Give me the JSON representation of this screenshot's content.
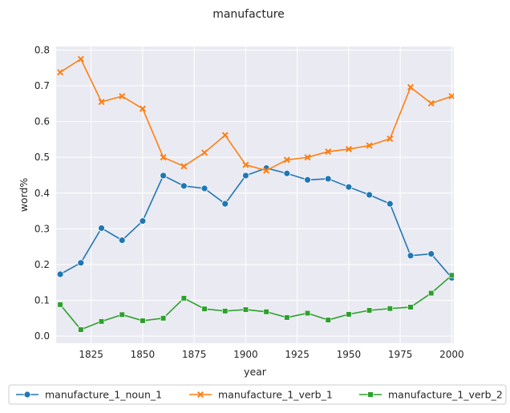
{
  "chart_data": {
    "type": "line",
    "title": "manufacture",
    "xlabel": "year",
    "ylabel": "word%",
    "xlim": [
      1808,
      2001
    ],
    "ylim": [
      -0.02,
      0.81
    ],
    "xticks": [
      1825,
      1850,
      1875,
      1900,
      1925,
      1950,
      1975,
      2000
    ],
    "yticks": [
      0.0,
      0.1,
      0.2,
      0.3,
      0.4,
      0.5,
      0.6,
      0.7,
      0.8
    ],
    "grid": true,
    "legend_position": "bottom",
    "x": [
      1810,
      1820,
      1830,
      1840,
      1850,
      1860,
      1870,
      1880,
      1890,
      1900,
      1910,
      1920,
      1930,
      1940,
      1950,
      1960,
      1970,
      1980,
      1990,
      2000
    ],
    "series": [
      {
        "name": "manufacture_1_noun_1",
        "color": "#1f77b4",
        "marker": "circle",
        "values": [
          0.173,
          0.205,
          0.302,
          0.268,
          0.322,
          0.449,
          0.42,
          0.413,
          0.37,
          0.449,
          0.47,
          0.455,
          0.437,
          0.44,
          0.417,
          0.395,
          0.37,
          0.225,
          0.23,
          0.163
        ]
      },
      {
        "name": "manufacture_1_verb_1",
        "color": "#ff7f0e",
        "marker": "x",
        "values": [
          0.738,
          0.775,
          0.655,
          0.671,
          0.636,
          0.5,
          0.475,
          0.513,
          0.562,
          0.479,
          0.463,
          0.493,
          0.5,
          0.516,
          0.523,
          0.533,
          0.552,
          0.696,
          0.651,
          0.671
        ]
      },
      {
        "name": "manufacture_1_verb_2",
        "color": "#2ca02c",
        "marker": "square",
        "values": [
          0.088,
          0.018,
          0.041,
          0.06,
          0.043,
          0.05,
          0.106,
          0.076,
          0.07,
          0.074,
          0.068,
          0.052,
          0.064,
          0.045,
          0.061,
          0.072,
          0.077,
          0.081,
          0.12,
          0.17
        ]
      }
    ]
  }
}
